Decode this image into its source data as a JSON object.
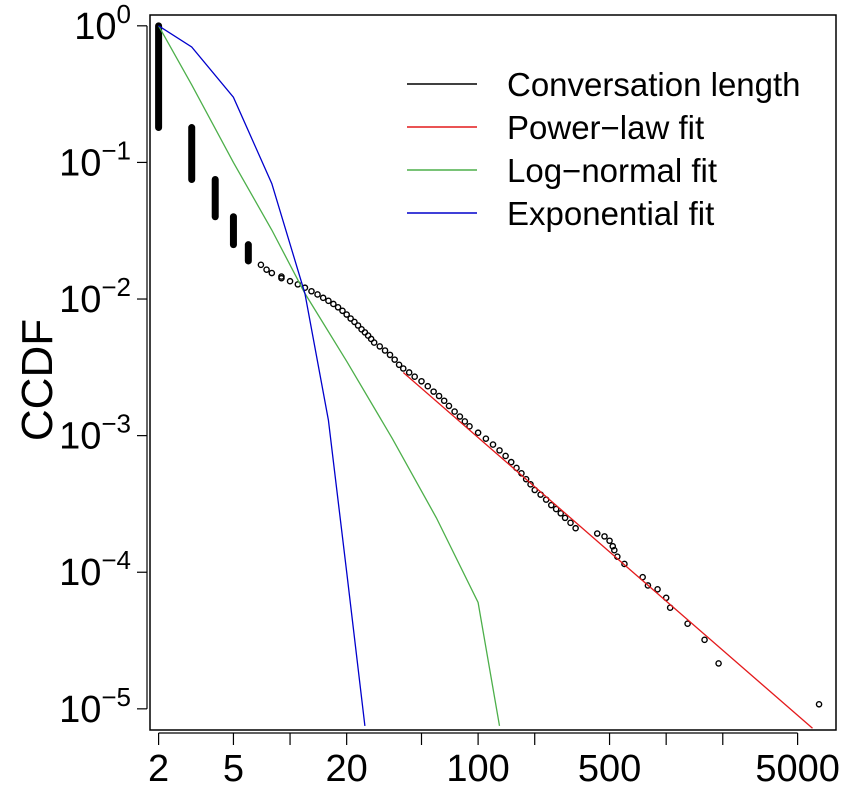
{
  "chart_data": {
    "type": "scatter",
    "title": "",
    "xlabel": "",
    "ylabel": "CCDF",
    "xscale": "log",
    "yscale": "log",
    "xlim": [
      1.8,
      8000
    ],
    "ylim": [
      7e-06,
      1.2
    ],
    "grid": false,
    "legend_position": "top-right",
    "x_tick_labels": [
      "2",
      "5",
      "20",
      "100",
      "500",
      "5000"
    ],
    "x_tick_values": [
      2,
      5,
      20,
      100,
      500,
      5000
    ],
    "x_minor_ticks": [
      10,
      50,
      200,
      1000,
      2000
    ],
    "y_tick_values": [
      1,
      0.1,
      0.01,
      0.001,
      0.0001,
      1e-05
    ],
    "y_tick_labels": [
      {
        "base": "10",
        "exp": "0"
      },
      {
        "base": "10",
        "exp": "−1"
      },
      {
        "base": "10",
        "exp": "−2"
      },
      {
        "base": "10",
        "exp": "−3"
      },
      {
        "base": "10",
        "exp": "−4"
      },
      {
        "base": "10",
        "exp": "−5"
      }
    ],
    "series": [
      {
        "name": "Conversation length",
        "color": "#000000",
        "kind": "points",
        "stacks": [
          {
            "x": 2,
            "ymin": 0.18,
            "ymax": 1.0
          },
          {
            "x": 3,
            "ymin": 0.075,
            "ymax": 0.18
          },
          {
            "x": 4,
            "ymin": 0.04,
            "ymax": 0.075
          },
          {
            "x": 5,
            "ymin": 0.025,
            "ymax": 0.04
          },
          {
            "x": 6,
            "ymin": 0.019,
            "ymax": 0.025
          }
        ],
        "points": [
          [
            7,
            0.0178
          ],
          [
            7.5,
            0.0164
          ],
          [
            8,
            0.0155
          ],
          [
            9,
            0.0146
          ],
          [
            9,
            0.0142
          ],
          [
            10,
            0.0135
          ],
          [
            11,
            0.0128
          ],
          [
            12,
            0.0121
          ],
          [
            13,
            0.0114
          ],
          [
            14,
            0.0108
          ],
          [
            15,
            0.0102
          ],
          [
            16,
            0.0097
          ],
          [
            17,
            0.0092
          ],
          [
            18,
            0.0087
          ],
          [
            19,
            0.0082
          ],
          [
            20,
            0.0077
          ],
          [
            21,
            0.0072
          ],
          [
            22,
            0.0068
          ],
          [
            23,
            0.0064
          ],
          [
            24,
            0.006
          ],
          [
            25,
            0.0057
          ],
          [
            26,
            0.0054
          ],
          [
            27,
            0.0051
          ],
          [
            28,
            0.0048
          ],
          [
            30,
            0.0045
          ],
          [
            32,
            0.0042
          ],
          [
            34,
            0.0039
          ],
          [
            36,
            0.0036
          ],
          [
            38,
            0.0033
          ],
          [
            40,
            0.0031
          ],
          [
            43,
            0.0029
          ],
          [
            46,
            0.0027
          ],
          [
            50,
            0.0025
          ],
          [
            54,
            0.0023
          ],
          [
            58,
            0.0021
          ],
          [
            62,
            0.00195
          ],
          [
            66,
            0.0018
          ],
          [
            70,
            0.00165
          ],
          [
            75,
            0.0015
          ],
          [
            80,
            0.00138
          ],
          [
            85,
            0.00127
          ],
          [
            90,
            0.00117
          ],
          [
            100,
            0.00105
          ],
          [
            110,
            0.00095
          ],
          [
            120,
            0.00086
          ],
          [
            130,
            0.00078
          ],
          [
            140,
            0.00071
          ],
          [
            150,
            0.00064
          ],
          [
            160,
            0.00058
          ],
          [
            170,
            0.00053
          ],
          [
            180,
            0.00048
          ],
          [
            190,
            0.00044
          ],
          [
            200,
            0.0004
          ],
          [
            215,
            0.00037
          ],
          [
            230,
            0.00034
          ],
          [
            245,
            0.00031
          ],
          [
            260,
            0.00029
          ],
          [
            275,
            0.00027
          ],
          [
            290,
            0.00025
          ],
          [
            310,
            0.00023
          ],
          [
            330,
            0.00021
          ],
          [
            430,
            0.000192
          ],
          [
            470,
            0.000183
          ],
          [
            500,
            0.00017
          ],
          [
            520,
            0.000155
          ],
          [
            530,
            0.000145
          ],
          [
            550,
            0.00013
          ],
          [
            600,
            0.000115
          ],
          [
            750,
            9.2e-05
          ],
          [
            800,
            8e-05
          ],
          [
            900,
            7.5e-05
          ],
          [
            1000,
            6.5e-05
          ],
          [
            1050,
            5.5e-05
          ],
          [
            1300,
            4.2e-05
          ],
          [
            1600,
            3.2e-05
          ],
          [
            1900,
            2.15e-05
          ],
          [
            6500,
            1.08e-05
          ]
        ]
      },
      {
        "name": "Power−law fit",
        "color": "#e41a1c",
        "kind": "line",
        "x": [
          40,
          6000
        ],
        "y": [
          0.0029,
          7.2e-06
        ]
      },
      {
        "name": "Log−normal fit",
        "color": "#4daf4a",
        "kind": "line",
        "x": [
          2,
          3,
          5,
          8,
          12,
          20,
          35,
          60,
          100,
          130
        ],
        "y": [
          1.0,
          0.37,
          0.1,
          0.032,
          0.011,
          0.0035,
          0.00095,
          0.00025,
          6e-05,
          7.5e-06
        ]
      },
      {
        "name": "Exponential fit",
        "color": "#0000cc",
        "kind": "line",
        "x": [
          2,
          3,
          5,
          8,
          12,
          16,
          20,
          25
        ],
        "y": [
          1.0,
          0.7,
          0.3,
          0.07,
          0.011,
          0.0013,
          0.0001,
          7.5e-06
        ]
      }
    ],
    "legend": [
      {
        "label": "Conversation length",
        "color": "#000000"
      },
      {
        "label": "Power−law fit",
        "color": "#e41a1c"
      },
      {
        "label": "Log−normal fit",
        "color": "#4daf4a"
      },
      {
        "label": "Exponential fit",
        "color": "#0000cc"
      }
    ]
  }
}
